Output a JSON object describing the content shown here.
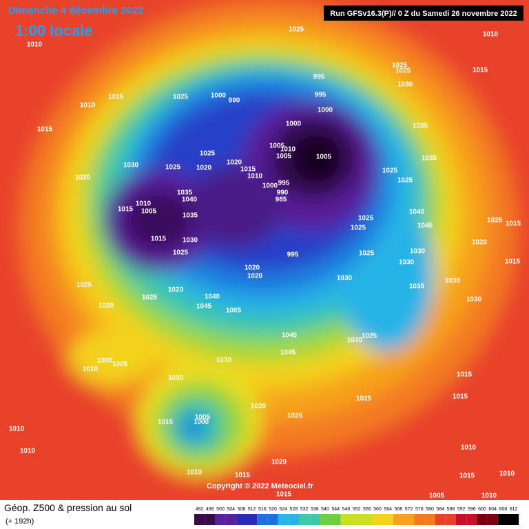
{
  "header": {
    "date": "Dimanche 4 décembre 2022",
    "time": "1:00 locale",
    "run": "Run GFSv16.3(P)// 0 Z du Samedi 26 novembre 2022"
  },
  "copyright": "Copyright © 2022 Meteociel.fr",
  "footer": {
    "title": "Géop. Z500 & pression au sol",
    "subtitle": "(+ 192h)"
  },
  "colorbar": {
    "ticks": [
      492,
      496,
      500,
      504,
      508,
      512,
      516,
      520,
      524,
      528,
      532,
      536,
      540,
      544,
      548,
      552,
      556,
      560,
      564,
      568,
      572,
      576,
      580,
      584,
      588,
      592,
      596,
      600,
      604,
      608,
      612
    ]
  },
  "isobars": [
    "1025",
    "1010",
    "1010",
    "1025",
    "1015",
    "1025",
    "995",
    "1030",
    "995",
    "1015",
    "1025",
    "1000",
    "990",
    "1010",
    "1000",
    "1000",
    "1035",
    "1015",
    "1005",
    "1010",
    "1005",
    "1005",
    "1025",
    "1035",
    "1030",
    "1025",
    "1020",
    "1020",
    "1015",
    "1010",
    "1025",
    "1020",
    "1025",
    "1000",
    "995",
    "990",
    "985",
    "1035",
    "1010",
    "1040",
    "1005",
    "1015",
    "1035",
    "1040",
    "1025",
    "1025",
    "1015",
    "1045",
    "1025",
    "1015",
    "1030",
    "1020",
    "1030",
    "1025",
    "1025",
    "995",
    "1015",
    "1030",
    "1020",
    "1020",
    "1030",
    "1035",
    "1030",
    "1025",
    "1020",
    "1025",
    "1040",
    "1045",
    "1030",
    "1020",
    "1005",
    "1045",
    "1030",
    "1025",
    "1045",
    "1000",
    "1005",
    "1010",
    "1030",
    "1015",
    "1030",
    "1015",
    "1025",
    "1020",
    "1025",
    "1015",
    "1005",
    "1000",
    "1010",
    "1010",
    "1010",
    "1020",
    "1010",
    "1015",
    "1015",
    "1010",
    "1015",
    "1005",
    "1010"
  ]
}
